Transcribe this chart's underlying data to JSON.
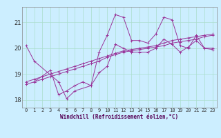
{
  "xlabel": "Windchill (Refroidissement éolien,°C)",
  "bg_color": "#cceeff",
  "line_color": "#993399",
  "grid_color": "#aaddcc",
  "xlim": [
    -0.5,
    23.5
  ],
  "ylim": [
    17.7,
    21.6
  ],
  "yticks": [
    18,
    19,
    20,
    21
  ],
  "xticks": [
    0,
    1,
    2,
    3,
    4,
    5,
    6,
    7,
    8,
    9,
    10,
    11,
    12,
    13,
    14,
    15,
    16,
    17,
    18,
    19,
    20,
    21,
    22,
    23
  ],
  "series": [
    {
      "x": [
        0,
        1,
        4,
        5,
        6,
        8,
        9,
        10,
        11,
        12,
        13,
        14,
        15,
        16,
        17,
        18,
        19,
        20,
        21,
        22,
        23
      ],
      "y": [
        20.1,
        19.5,
        18.7,
        18.05,
        18.35,
        18.55,
        19.85,
        20.5,
        21.3,
        21.2,
        20.3,
        20.3,
        20.2,
        20.55,
        21.2,
        21.1,
        20.1,
        20.0,
        20.5,
        20.0,
        20.0
      ]
    },
    {
      "x": [
        1,
        3,
        4,
        5,
        6,
        7,
        8,
        9,
        10,
        11,
        12,
        13,
        14,
        15,
        16,
        17,
        18,
        19,
        20,
        21,
        22,
        23
      ],
      "y": [
        18.7,
        19.15,
        18.2,
        18.35,
        18.55,
        18.7,
        18.55,
        19.05,
        19.3,
        20.15,
        20.0,
        19.85,
        19.85,
        19.85,
        20.0,
        20.35,
        20.15,
        19.85,
        20.05,
        20.3,
        20.0,
        19.95
      ]
    },
    {
      "x": [
        0,
        1,
        2,
        3,
        4,
        5,
        6,
        7,
        8,
        9,
        10,
        11,
        12,
        13,
        14,
        15,
        16,
        17,
        18,
        19,
        20,
        21,
        22,
        23
      ],
      "y": [
        18.7,
        18.8,
        18.9,
        19.0,
        19.1,
        19.2,
        19.3,
        19.4,
        19.5,
        19.6,
        19.7,
        19.8,
        19.9,
        19.95,
        20.0,
        20.05,
        20.1,
        20.2,
        20.3,
        20.35,
        20.4,
        20.45,
        20.5,
        20.55
      ]
    },
    {
      "x": [
        0,
        1,
        2,
        3,
        4,
        5,
        6,
        7,
        8,
        9,
        10,
        11,
        12,
        13,
        14,
        15,
        16,
        17,
        18,
        19,
        20,
        21,
        22,
        23
      ],
      "y": [
        18.6,
        18.7,
        18.8,
        18.9,
        19.0,
        19.1,
        19.2,
        19.3,
        19.4,
        19.5,
        19.65,
        19.75,
        19.85,
        19.9,
        19.95,
        20.0,
        20.05,
        20.1,
        20.2,
        20.25,
        20.3,
        20.35,
        20.45,
        20.5
      ]
    }
  ],
  "tick_font_size": 5,
  "xlabel_font_size": 5.5,
  "xlabel_color": "#550055",
  "tick_color": "#333333",
  "figsize": [
    3.2,
    2.0
  ],
  "dpi": 100
}
